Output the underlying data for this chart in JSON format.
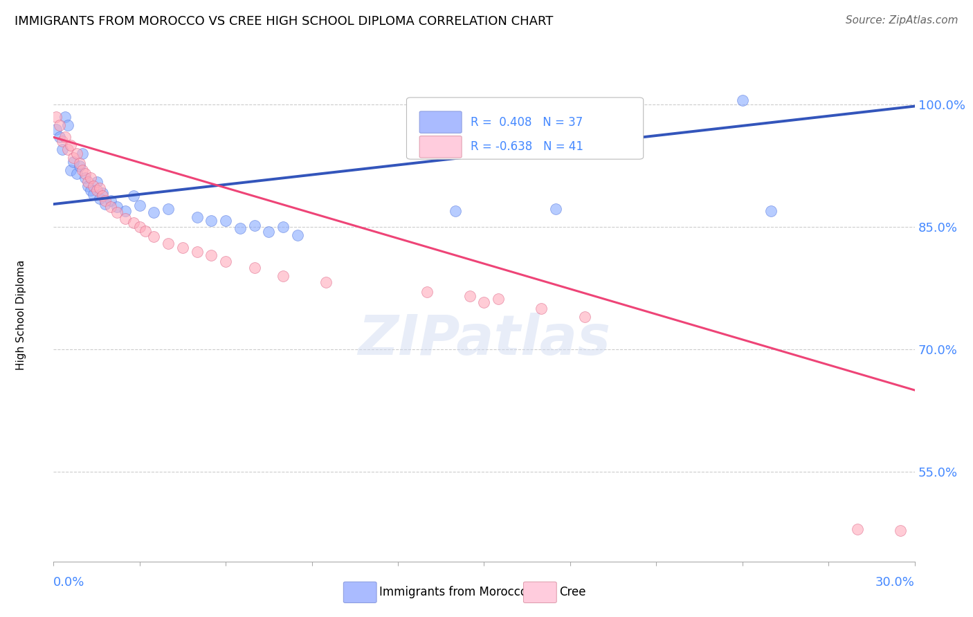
{
  "title": "IMMIGRANTS FROM MOROCCO VS CREE HIGH SCHOOL DIPLOMA CORRELATION CHART",
  "source": "Source: ZipAtlas.com",
  "ylabel": "High School Diploma",
  "ytick_labels": [
    "100.0%",
    "85.0%",
    "70.0%",
    "55.0%"
  ],
  "ytick_values": [
    1.0,
    0.85,
    0.7,
    0.55
  ],
  "xmin": 0.0,
  "xmax": 0.3,
  "ymin": 0.44,
  "ymax": 1.045,
  "blue_scatter": [
    [
      0.001,
      0.97
    ],
    [
      0.002,
      0.96
    ],
    [
      0.003,
      0.945
    ],
    [
      0.004,
      0.985
    ],
    [
      0.005,
      0.975
    ],
    [
      0.006,
      0.92
    ],
    [
      0.007,
      0.93
    ],
    [
      0.008,
      0.915
    ],
    [
      0.009,
      0.925
    ],
    [
      0.01,
      0.94
    ],
    [
      0.011,
      0.91
    ],
    [
      0.012,
      0.9
    ],
    [
      0.013,
      0.895
    ],
    [
      0.014,
      0.89
    ],
    [
      0.015,
      0.905
    ],
    [
      0.016,
      0.885
    ],
    [
      0.017,
      0.892
    ],
    [
      0.018,
      0.878
    ],
    [
      0.02,
      0.882
    ],
    [
      0.022,
      0.875
    ],
    [
      0.025,
      0.87
    ],
    [
      0.028,
      0.888
    ],
    [
      0.03,
      0.876
    ],
    [
      0.035,
      0.868
    ],
    [
      0.04,
      0.872
    ],
    [
      0.05,
      0.862
    ],
    [
      0.055,
      0.858
    ],
    [
      0.06,
      0.858
    ],
    [
      0.065,
      0.848
    ],
    [
      0.07,
      0.852
    ],
    [
      0.075,
      0.844
    ],
    [
      0.08,
      0.85
    ],
    [
      0.085,
      0.84
    ],
    [
      0.14,
      0.87
    ],
    [
      0.175,
      0.872
    ],
    [
      0.24,
      1.005
    ],
    [
      0.25,
      0.87
    ]
  ],
  "pink_scatter": [
    [
      0.001,
      0.985
    ],
    [
      0.002,
      0.975
    ],
    [
      0.003,
      0.955
    ],
    [
      0.004,
      0.96
    ],
    [
      0.005,
      0.945
    ],
    [
      0.006,
      0.95
    ],
    [
      0.007,
      0.935
    ],
    [
      0.008,
      0.94
    ],
    [
      0.009,
      0.928
    ],
    [
      0.01,
      0.92
    ],
    [
      0.011,
      0.915
    ],
    [
      0.012,
      0.905
    ],
    [
      0.013,
      0.91
    ],
    [
      0.014,
      0.9
    ],
    [
      0.015,
      0.895
    ],
    [
      0.016,
      0.898
    ],
    [
      0.017,
      0.888
    ],
    [
      0.018,
      0.882
    ],
    [
      0.02,
      0.875
    ],
    [
      0.022,
      0.868
    ],
    [
      0.025,
      0.86
    ],
    [
      0.028,
      0.855
    ],
    [
      0.03,
      0.85
    ],
    [
      0.032,
      0.845
    ],
    [
      0.035,
      0.838
    ],
    [
      0.04,
      0.83
    ],
    [
      0.045,
      0.825
    ],
    [
      0.05,
      0.82
    ],
    [
      0.055,
      0.815
    ],
    [
      0.06,
      0.808
    ],
    [
      0.07,
      0.8
    ],
    [
      0.08,
      0.79
    ],
    [
      0.095,
      0.782
    ],
    [
      0.13,
      0.77
    ],
    [
      0.145,
      0.765
    ],
    [
      0.15,
      0.758
    ],
    [
      0.155,
      0.762
    ],
    [
      0.17,
      0.75
    ],
    [
      0.185,
      0.74
    ],
    [
      0.28,
      0.48
    ],
    [
      0.295,
      0.478
    ]
  ],
  "blue_line_x": [
    0.0,
    0.3
  ],
  "blue_line_y": [
    0.878,
    0.998
  ],
  "pink_line_x": [
    0.0,
    0.3
  ],
  "pink_line_y": [
    0.96,
    0.65
  ],
  "title_fontsize": 13,
  "source_fontsize": 11,
  "ylabel_fontsize": 11,
  "ytick_fontsize": 13,
  "scatter_size": 130,
  "blue_scatter_color": "#88aaff",
  "blue_scatter_edge": "#5577dd",
  "pink_scatter_color": "#ffaabb",
  "pink_scatter_edge": "#dd6688",
  "blue_line_color": "#3355bb",
  "pink_line_color": "#ee4477",
  "grid_color": "#cccccc",
  "axis_label_color": "#4488ff",
  "scatter_alpha": 0.6,
  "legend_blue_text": "R =  0.408   N = 37",
  "legend_pink_text": "R = -0.638   N = 41",
  "bottom_legend_blue": "Immigrants from Morocco",
  "bottom_legend_pink": "Cree"
}
